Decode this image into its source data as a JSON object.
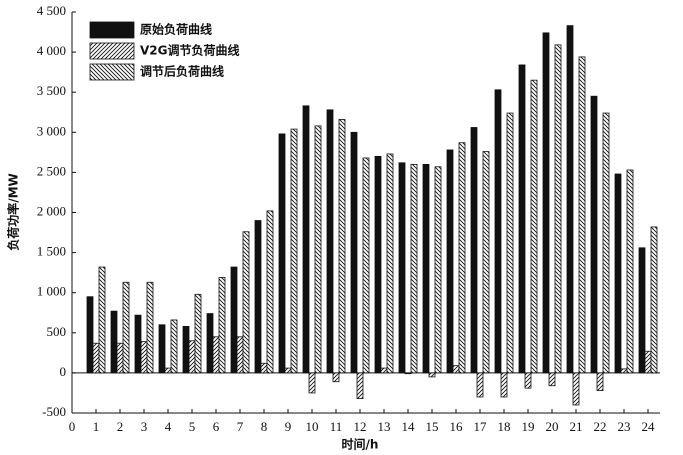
{
  "chart_data": {
    "type": "bar",
    "x": [
      1,
      2,
      3,
      4,
      5,
      6,
      7,
      8,
      9,
      10,
      11,
      12,
      13,
      14,
      15,
      16,
      17,
      18,
      19,
      20,
      21,
      22,
      23,
      24
    ],
    "xlim": [
      0,
      24
    ],
    "xticks": [
      0,
      1,
      2,
      3,
      4,
      5,
      6,
      7,
      8,
      9,
      10,
      11,
      12,
      13,
      14,
      15,
      16,
      17,
      18,
      19,
      20,
      21,
      22,
      23,
      24
    ],
    "ylim": [
      -500,
      4500
    ],
    "yticks": [
      -500,
      0,
      500,
      {
        "value": 1000,
        "label": "1 000"
      },
      {
        "value": 1500,
        "label": "1 500"
      },
      {
        "value": 2000,
        "label": "2 000"
      },
      {
        "value": 2500,
        "label": "2 500"
      },
      {
        "value": 3000,
        "label": "3 000"
      },
      {
        "value": 3500,
        "label": "3 500"
      },
      {
        "value": 4000,
        "label": "4 000"
      },
      {
        "value": 4500,
        "label": "4 500"
      }
    ],
    "x_label": "时间/h",
    "y_label": "负荷功率/MW",
    "legend": "upper left",
    "series": [
      {
        "name": "原始负荷曲线",
        "color": "#111111",
        "hatch": "none",
        "values": [
          950,
          770,
          720,
          600,
          580,
          740,
          1320,
          1900,
          2980,
          3330,
          3280,
          3000,
          2700,
          2620,
          2600,
          2780,
          3060,
          3530,
          3840,
          4240,
          4330,
          3450,
          2480,
          1560
        ]
      },
      {
        "name": "V2G调节负荷曲线",
        "color": "#ffffff",
        "hatch": "/",
        "values": [
          370,
          370,
          390,
          60,
          400,
          450,
          450,
          120,
          60,
          -250,
          -110,
          -320,
          60,
          -10,
          -50,
          90,
          -300,
          -300,
          -190,
          -160,
          -400,
          -220,
          50,
          270
        ]
      },
      {
        "name": "调节后负荷曲线",
        "color": "#ffffff",
        "hatch": "\\",
        "values": [
          1320,
          1130,
          1130,
          660,
          980,
          1190,
          1760,
          2020,
          3040,
          3080,
          3160,
          2680,
          2730,
          2600,
          2570,
          2870,
          2760,
          3240,
          3650,
          4090,
          3940,
          3240,
          2530,
          1820
        ]
      }
    ]
  }
}
